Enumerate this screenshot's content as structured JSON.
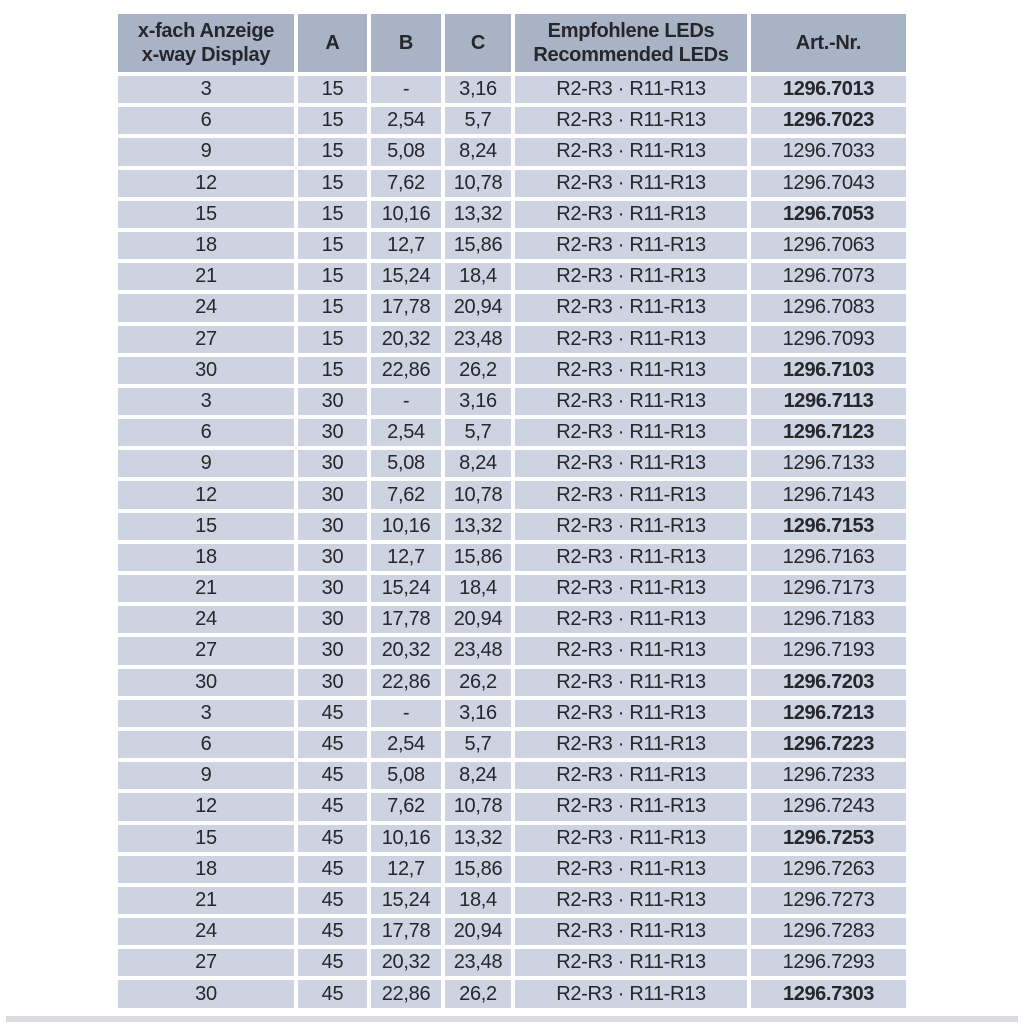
{
  "page": {
    "background": "#ffffff",
    "bottom_strip_color": "#d9dbdf"
  },
  "table": {
    "colors": {
      "header_bg": "#a9b3c6",
      "row_bg": "#cdd3e0",
      "grid": "#ffffff",
      "text": "#26262b"
    },
    "header": {
      "display_label_de": "x-fach Anzeige",
      "display_label_en": "x-way Display",
      "col_a": "A",
      "col_b": "B",
      "col_c": "C",
      "leds_label_de": "Empfohlene LEDs",
      "leds_label_en": "Recommended LEDs",
      "artnr_label": "Art.-Nr."
    },
    "rows": [
      {
        "display": "3",
        "a": "15",
        "b": "-",
        "c": "3,16",
        "leds": "R2-R3 · R11-R13",
        "art": "1296.7013",
        "bold": true
      },
      {
        "display": "6",
        "a": "15",
        "b": "2,54",
        "c": "5,7",
        "leds": "R2-R3 · R11-R13",
        "art": "1296.7023",
        "bold": true
      },
      {
        "display": "9",
        "a": "15",
        "b": "5,08",
        "c": "8,24",
        "leds": "R2-R3 · R11-R13",
        "art": "1296.7033",
        "bold": false
      },
      {
        "display": "12",
        "a": "15",
        "b": "7,62",
        "c": "10,78",
        "leds": "R2-R3 · R11-R13",
        "art": "1296.7043",
        "bold": false
      },
      {
        "display": "15",
        "a": "15",
        "b": "10,16",
        "c": "13,32",
        "leds": "R2-R3 · R11-R13",
        "art": "1296.7053",
        "bold": true
      },
      {
        "display": "18",
        "a": "15",
        "b": "12,7",
        "c": "15,86",
        "leds": "R2-R3 · R11-R13",
        "art": "1296.7063",
        "bold": false
      },
      {
        "display": "21",
        "a": "15",
        "b": "15,24",
        "c": "18,4",
        "leds": "R2-R3 · R11-R13",
        "art": "1296.7073",
        "bold": false
      },
      {
        "display": "24",
        "a": "15",
        "b": "17,78",
        "c": "20,94",
        "leds": "R2-R3 · R11-R13",
        "art": "1296.7083",
        "bold": false
      },
      {
        "display": "27",
        "a": "15",
        "b": "20,32",
        "c": "23,48",
        "leds": "R2-R3 · R11-R13",
        "art": "1296.7093",
        "bold": false
      },
      {
        "display": "30",
        "a": "15",
        "b": "22,86",
        "c": "26,2",
        "leds": "R2-R3 · R11-R13",
        "art": "1296.7103",
        "bold": true
      },
      {
        "display": "3",
        "a": "30",
        "b": "-",
        "c": "3,16",
        "leds": "R2-R3 · R11-R13",
        "art": "1296.7113",
        "bold": true
      },
      {
        "display": "6",
        "a": "30",
        "b": "2,54",
        "c": "5,7",
        "leds": "R2-R3 · R11-R13",
        "art": "1296.7123",
        "bold": true
      },
      {
        "display": "9",
        "a": "30",
        "b": "5,08",
        "c": "8,24",
        "leds": "R2-R3 · R11-R13",
        "art": "1296.7133",
        "bold": false
      },
      {
        "display": "12",
        "a": "30",
        "b": "7,62",
        "c": "10,78",
        "leds": "R2-R3 · R11-R13",
        "art": "1296.7143",
        "bold": false
      },
      {
        "display": "15",
        "a": "30",
        "b": "10,16",
        "c": "13,32",
        "leds": "R2-R3 · R11-R13",
        "art": "1296.7153",
        "bold": true
      },
      {
        "display": "18",
        "a": "30",
        "b": "12,7",
        "c": "15,86",
        "leds": "R2-R3 · R11-R13",
        "art": "1296.7163",
        "bold": false
      },
      {
        "display": "21",
        "a": "30",
        "b": "15,24",
        "c": "18,4",
        "leds": "R2-R3 · R11-R13",
        "art": "1296.7173",
        "bold": false
      },
      {
        "display": "24",
        "a": "30",
        "b": "17,78",
        "c": "20,94",
        "leds": "R2-R3 · R11-R13",
        "art": "1296.7183",
        "bold": false
      },
      {
        "display": "27",
        "a": "30",
        "b": "20,32",
        "c": "23,48",
        "leds": "R2-R3 · R11-R13",
        "art": "1296.7193",
        "bold": false
      },
      {
        "display": "30",
        "a": "30",
        "b": "22,86",
        "c": "26,2",
        "leds": "R2-R3 · R11-R13",
        "art": "1296.7203",
        "bold": true
      },
      {
        "display": "3",
        "a": "45",
        "b": "-",
        "c": "3,16",
        "leds": "R2-R3 · R11-R13",
        "art": "1296.7213",
        "bold": true
      },
      {
        "display": "6",
        "a": "45",
        "b": "2,54",
        "c": "5,7",
        "leds": "R2-R3 · R11-R13",
        "art": "1296.7223",
        "bold": true
      },
      {
        "display": "9",
        "a": "45",
        "b": "5,08",
        "c": "8,24",
        "leds": "R2-R3 · R11-R13",
        "art": "1296.7233",
        "bold": false
      },
      {
        "display": "12",
        "a": "45",
        "b": "7,62",
        "c": "10,78",
        "leds": "R2-R3 · R11-R13",
        "art": "1296.7243",
        "bold": false
      },
      {
        "display": "15",
        "a": "45",
        "b": "10,16",
        "c": "13,32",
        "leds": "R2-R3 · R11-R13",
        "art": "1296.7253",
        "bold": true
      },
      {
        "display": "18",
        "a": "45",
        "b": "12,7",
        "c": "15,86",
        "leds": "R2-R3 · R11-R13",
        "art": "1296.7263",
        "bold": false
      },
      {
        "display": "21",
        "a": "45",
        "b": "15,24",
        "c": "18,4",
        "leds": "R2-R3 · R11-R13",
        "art": "1296.7273",
        "bold": false
      },
      {
        "display": "24",
        "a": "45",
        "b": "17,78",
        "c": "20,94",
        "leds": "R2-R3 · R11-R13",
        "art": "1296.7283",
        "bold": false
      },
      {
        "display": "27",
        "a": "45",
        "b": "20,32",
        "c": "23,48",
        "leds": "R2-R3 · R11-R13",
        "art": "1296.7293",
        "bold": false
      },
      {
        "display": "30",
        "a": "45",
        "b": "22,86",
        "c": "26,2",
        "leds": "R2-R3 · R11-R13",
        "art": "1296.7303",
        "bold": true
      }
    ]
  }
}
